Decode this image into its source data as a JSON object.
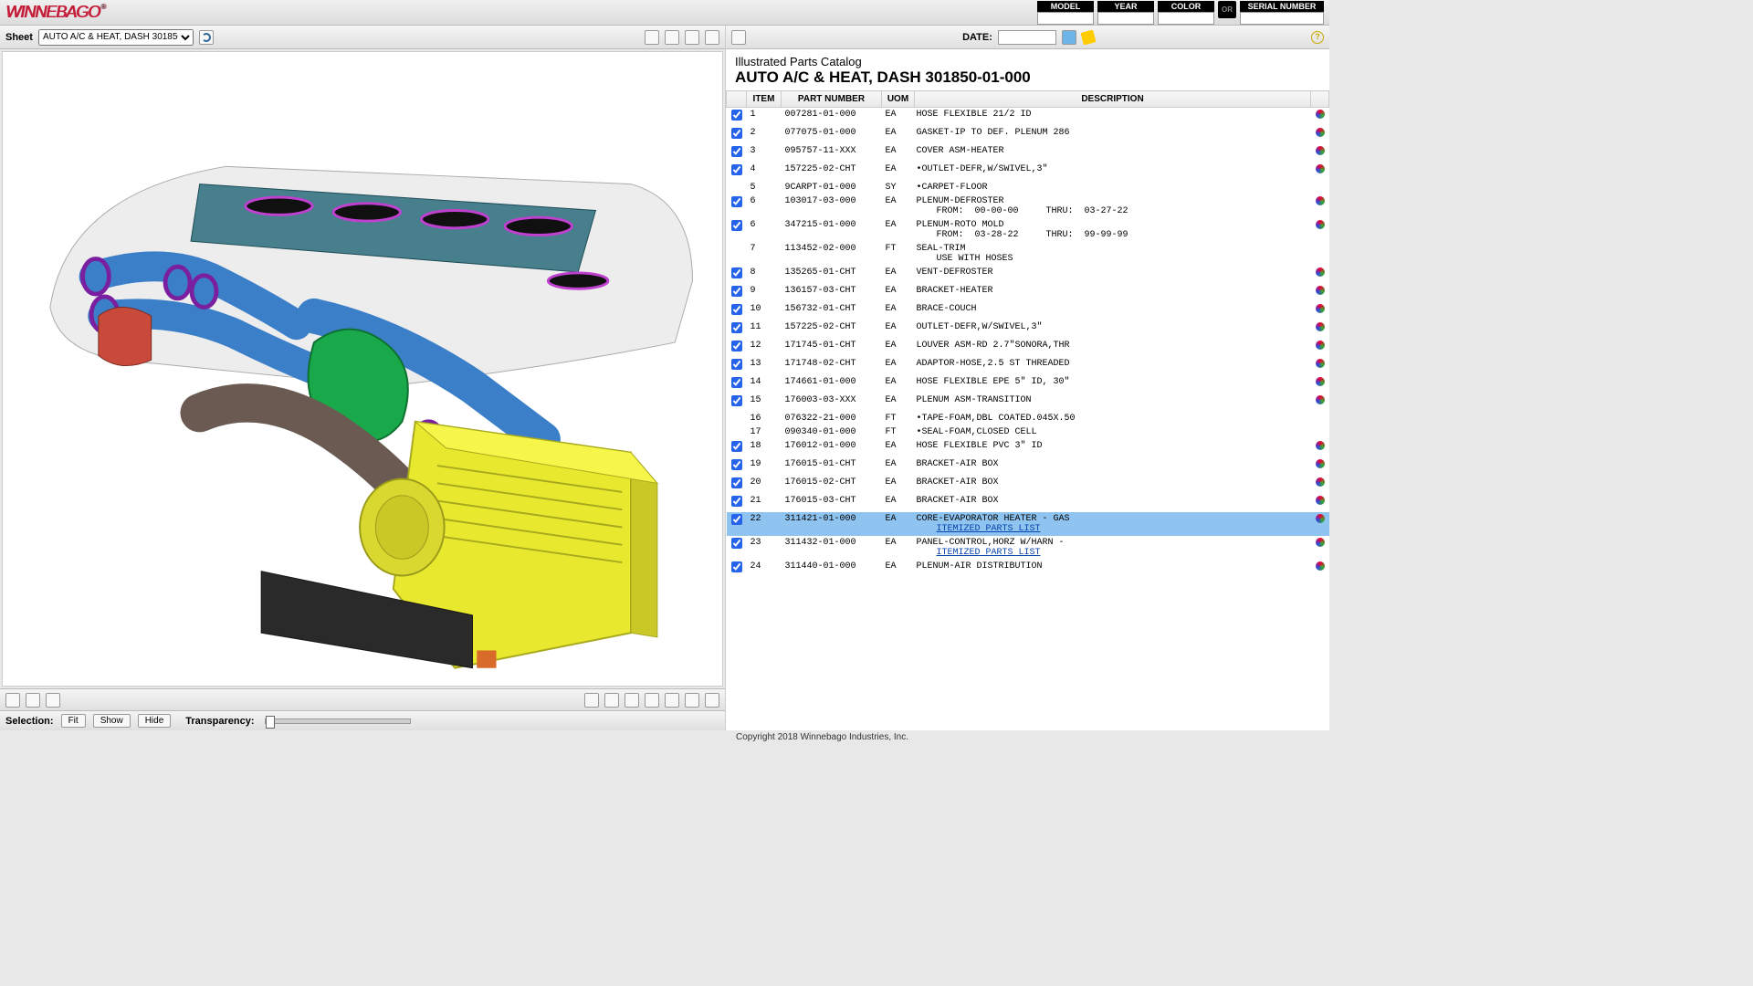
{
  "brand": "WINNEBAGO",
  "topfields": {
    "model": "MODEL",
    "year": "YEAR",
    "color": "COLOR",
    "or": "OR",
    "serial": "SERIAL NUMBER"
  },
  "sheet": {
    "label": "Sheet",
    "selected": "AUTO A/C & HEAT, DASH 301850-01-000"
  },
  "right": {
    "date_label": "DATE:",
    "subtitle": "Illustrated Parts Catalog",
    "title": "AUTO A/C & HEAT, DASH 301850-01-000"
  },
  "columns": {
    "item": "ITEM",
    "pn": "PART NUMBER",
    "uom": "UOM",
    "desc": "DESCRIPTION"
  },
  "rows": [
    {
      "c": true,
      "i": "1",
      "pn": "007281-01-000",
      "u": "EA",
      "d": "HOSE FLEXIBLE 21/2 ID"
    },
    {
      "c": true,
      "i": "2",
      "pn": "077075-01-000",
      "u": "EA",
      "d": "GASKET-IP TO DEF. PLENUM 286"
    },
    {
      "c": true,
      "i": "3",
      "pn": "095757-11-XXX",
      "u": "EA",
      "d": "COVER ASM-HEATER"
    },
    {
      "c": true,
      "i": "4",
      "pn": "157225-02-CHT",
      "u": "EA",
      "d": "•OUTLET-DEFR,W/SWIVEL,3\""
    },
    {
      "c": false,
      "i": "5",
      "pn": "9CARPT-01-000",
      "u": "SY",
      "d": "•CARPET-FLOOR",
      "nodot": true
    },
    {
      "c": true,
      "i": "6",
      "pn": "103017-03-000",
      "u": "EA",
      "d": "PLENUM-DEFROSTER",
      "extra": "FROM:  00-00-00     THRU:  03-27-22"
    },
    {
      "c": true,
      "i": "6",
      "pn": "347215-01-000",
      "u": "EA",
      "d": "PLENUM-ROTO MOLD",
      "extra": "FROM:  03-28-22     THRU:  99-99-99"
    },
    {
      "c": false,
      "i": "7",
      "pn": "113452-02-000",
      "u": "FT",
      "d": "SEAL-TRIM",
      "extra": "USE WITH HOSES",
      "nodot": true
    },
    {
      "c": true,
      "i": "8",
      "pn": "135265-01-CHT",
      "u": "EA",
      "d": "VENT-DEFROSTER"
    },
    {
      "c": true,
      "i": "9",
      "pn": "136157-03-CHT",
      "u": "EA",
      "d": "BRACKET-HEATER"
    },
    {
      "c": true,
      "i": "10",
      "pn": "156732-01-CHT",
      "u": "EA",
      "d": "BRACE-COUCH"
    },
    {
      "c": true,
      "i": "11",
      "pn": "157225-02-CHT",
      "u": "EA",
      "d": "OUTLET-DEFR,W/SWIVEL,3\""
    },
    {
      "c": true,
      "i": "12",
      "pn": "171745-01-CHT",
      "u": "EA",
      "d": "LOUVER ASM-RD 2.7\"SONORA,THR"
    },
    {
      "c": true,
      "i": "13",
      "pn": "171748-02-CHT",
      "u": "EA",
      "d": "ADAPTOR-HOSE,2.5 ST THREADED"
    },
    {
      "c": true,
      "i": "14",
      "pn": "174661-01-000",
      "u": "EA",
      "d": "HOSE FLEXIBLE EPE 5\" ID, 30\""
    },
    {
      "c": true,
      "i": "15",
      "pn": "176003-03-XXX",
      "u": "EA",
      "d": "PLENUM ASM-TRANSITION"
    },
    {
      "c": false,
      "i": "16",
      "pn": "076322-21-000",
      "u": "FT",
      "d": "•TAPE-FOAM,DBL COATED.045X.50",
      "nodot": true
    },
    {
      "c": false,
      "i": "17",
      "pn": "090340-01-000",
      "u": "FT",
      "d": "•SEAL-FOAM,CLOSED CELL",
      "nodot": true
    },
    {
      "c": true,
      "i": "18",
      "pn": "176012-01-000",
      "u": "EA",
      "d": "HOSE FLEXIBLE PVC 3\" ID"
    },
    {
      "c": true,
      "i": "19",
      "pn": "176015-01-CHT",
      "u": "EA",
      "d": "BRACKET-AIR BOX"
    },
    {
      "c": true,
      "i": "20",
      "pn": "176015-02-CHT",
      "u": "EA",
      "d": "BRACKET-AIR BOX"
    },
    {
      "c": true,
      "i": "21",
      "pn": "176015-03-CHT",
      "u": "EA",
      "d": "BRACKET-AIR BOX"
    },
    {
      "c": true,
      "i": "22",
      "pn": "311421-01-000",
      "u": "EA",
      "d": "CORE-EVAPORATOR HEATER - GAS",
      "link": "ITEMIZED PARTS LIST",
      "sel": true
    },
    {
      "c": true,
      "i": "23",
      "pn": "311432-01-000",
      "u": "EA",
      "d": "PANEL-CONTROL,HORZ W/HARN -",
      "link": "ITEMIZED PARTS LIST"
    },
    {
      "c": true,
      "i": "24",
      "pn": "311440-01-000",
      "u": "EA",
      "d": "PLENUM-AIR DISTRIBUTION"
    }
  ],
  "bottom": {
    "selection": "Selection:",
    "fit": "Fit",
    "show": "Show",
    "hide": "Hide",
    "transparency": "Transparency:"
  },
  "copyright": "Copyright 2018 Winnebago Industries, Inc.",
  "colors": {
    "hose": "#3b7fc9",
    "manifold": "#2a6b7a",
    "connector": "#19a84a",
    "box": "#e8e82e",
    "ring": "#a030c8",
    "body": "#d8d8d8",
    "motor": "#6a5a52",
    "panel": "#303030",
    "heater": "#c94a3a"
  }
}
